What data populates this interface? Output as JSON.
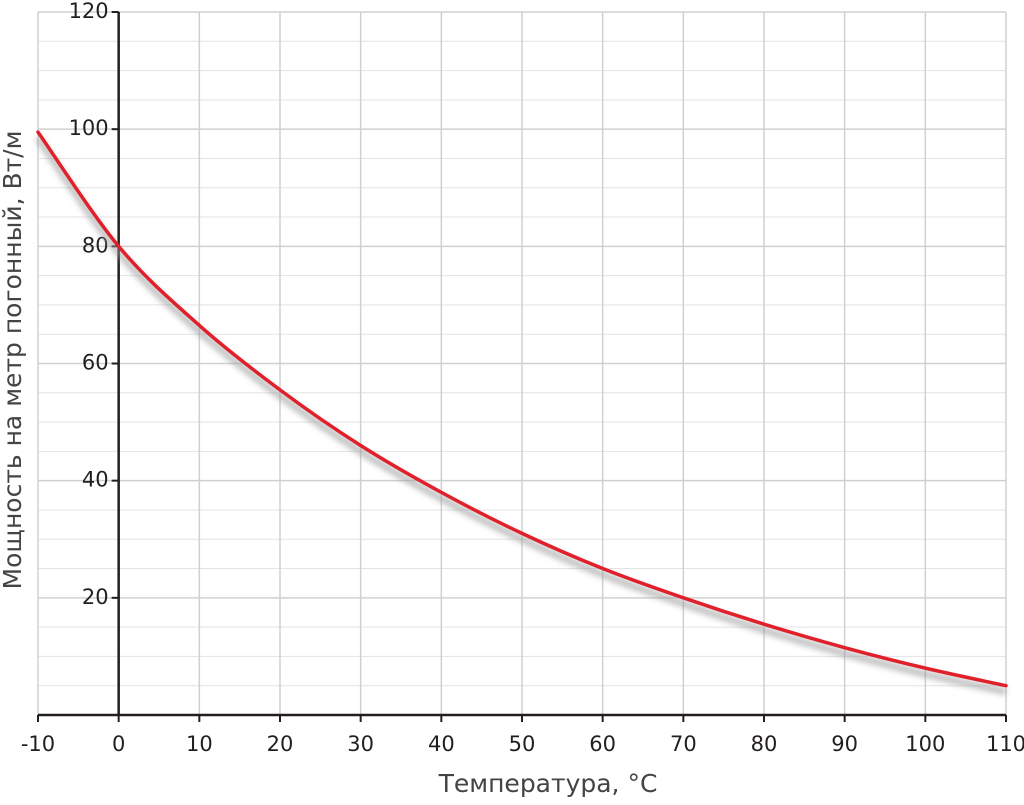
{
  "chart_data": {
    "type": "line",
    "x_label": "Температура, °С",
    "y_label": "Мощность на метр погонный, Вт/м",
    "x": [
      -10,
      0,
      10,
      20,
      30,
      40,
      50,
      60,
      70,
      80,
      90,
      100,
      110
    ],
    "series": [
      {
        "name": "Мощность",
        "color": "#e0202a",
        "values": [
          99.5,
          80,
          66.5,
          55.5,
          46,
          38,
          31,
          25,
          20,
          15.5,
          11.5,
          8,
          5
        ]
      }
    ],
    "xlim": [
      -10,
      110
    ],
    "xticks": [
      -10,
      0,
      10,
      20,
      30,
      40,
      50,
      60,
      70,
      80,
      90,
      100,
      110
    ],
    "ylim": [
      0,
      120
    ],
    "yticks": [
      20,
      40,
      60,
      80,
      100,
      120
    ],
    "y_minor_ticks": [
      5,
      10,
      15,
      25,
      30,
      35,
      45,
      50,
      55,
      65,
      70,
      75,
      85,
      90,
      95,
      105,
      110,
      115
    ],
    "grid": true
  }
}
